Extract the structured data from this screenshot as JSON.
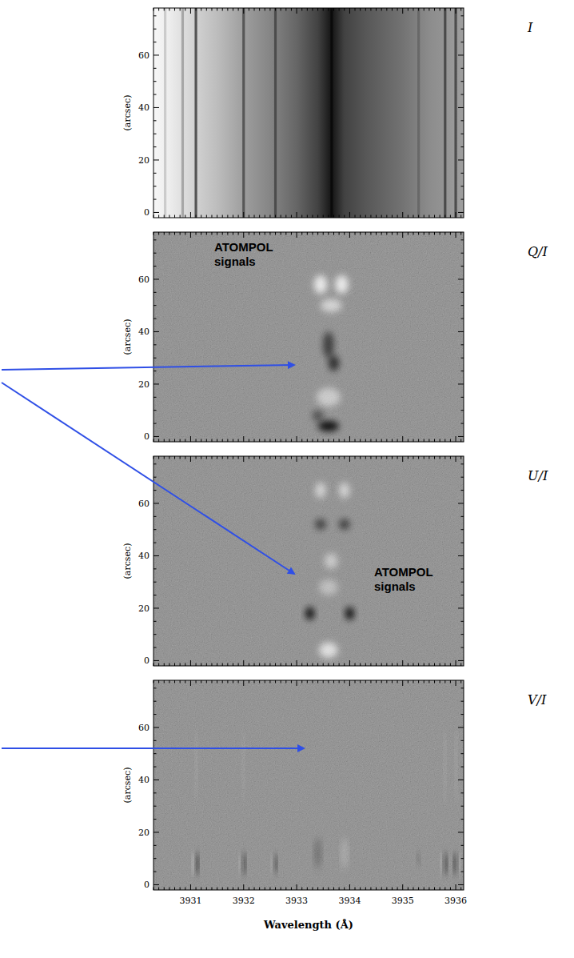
{
  "chart_data": [
    {
      "type": "image",
      "label": "I",
      "y_label": "(arcsec)",
      "xlim": [
        3930.3,
        3936.15
      ],
      "ylim": [
        -2,
        78
      ],
      "xticks": [
        3931,
        3932,
        3933,
        3934,
        3935,
        3936
      ],
      "yticks": [
        0,
        20,
        40,
        60
      ],
      "tick_labels": "y",
      "continuum": {
        "x": [
          3930.3,
          3930.6,
          3931.0,
          3931.5,
          3932.0,
          3932.5,
          3933.0,
          3933.4,
          3933.66,
          3933.9,
          3934.3,
          3935.0,
          3935.5,
          3936.15
        ],
        "values": [
          0.97,
          0.93,
          0.84,
          0.74,
          0.62,
          0.52,
          0.4,
          0.26,
          0.08,
          0.26,
          0.34,
          0.45,
          0.55,
          0.62
        ]
      },
      "absorption_lines": {
        "x": [
          3930.52,
          3930.85,
          3931.1,
          3932.0,
          3932.6,
          3933.66,
          3935.3,
          3935.8,
          3936.0
        ],
        "values": [
          0.15,
          0.25,
          0.6,
          0.45,
          0.4,
          0.5,
          0.2,
          0.5,
          0.5
        ]
      }
    },
    {
      "type": "image",
      "label": "Q/I",
      "y_label": "(arcsec)",
      "xlim": [
        3930.3,
        3936.15
      ],
      "ylim": [
        -2,
        78
      ],
      "xticks": [
        3931,
        3932,
        3933,
        3934,
        3935,
        3936
      ],
      "yticks": [
        0,
        20,
        40,
        60
      ],
      "tick_labels": "y",
      "annotation": "ATOMPOL signals",
      "blobs": {
        "x": [
          3933.45,
          3933.85,
          3933.65,
          3933.6,
          3933.7,
          3933.6,
          3933.6,
          3933.4
        ],
        "y": [
          58,
          58,
          50,
          35,
          28,
          15,
          4,
          8
        ],
        "dx": [
          0.25,
          0.25,
          0.4,
          0.2,
          0.2,
          0.45,
          0.4,
          0.2
        ],
        "dy": [
          7,
          7,
          5,
          10,
          6,
          7,
          4,
          4
        ],
        "values": [
          0.8,
          0.8,
          0.6,
          -0.6,
          -0.7,
          0.5,
          -0.9,
          -0.5
        ]
      }
    },
    {
      "type": "image",
      "label": "U/I",
      "y_label": "(arcsec)",
      "xlim": [
        3930.3,
        3936.15
      ],
      "ylim": [
        -2,
        78
      ],
      "xticks": [
        3931,
        3932,
        3933,
        3934,
        3935,
        3936
      ],
      "yticks": [
        0,
        20,
        40,
        60
      ],
      "tick_labels": "y",
      "annotation": "ATOMPOL signals",
      "blobs": {
        "x": [
          3933.45,
          3933.9,
          3933.45,
          3933.9,
          3933.65,
          3933.6,
          3933.25,
          3934.0,
          3933.6
        ],
        "y": [
          65,
          65,
          52,
          52,
          38,
          28,
          18,
          18,
          4
        ],
        "dx": [
          0.2,
          0.2,
          0.2,
          0.2,
          0.25,
          0.35,
          0.17,
          0.17,
          0.35
        ],
        "dy": [
          6,
          6,
          4,
          4,
          6,
          6,
          5,
          5,
          6
        ],
        "values": [
          0.6,
          0.6,
          -0.6,
          -0.6,
          0.5,
          0.4,
          -0.9,
          -0.9,
          0.7
        ]
      }
    },
    {
      "type": "image",
      "label": "V/I",
      "y_label": "(arcsec)",
      "x_label": "Wavelength (Å)",
      "xlim": [
        3930.3,
        3936.15
      ],
      "ylim": [
        -2,
        78
      ],
      "xticks": [
        3931,
        3932,
        3933,
        3934,
        3935,
        3936
      ],
      "yticks": [
        0,
        20,
        40,
        60
      ],
      "blobs": {
        "x": [
          3931.12,
          3931.05,
          3931.1,
          3932.0,
          3931.95,
          3932.0,
          3932.6,
          3932.55,
          3933.4,
          3933.9,
          3935.3,
          3935.8,
          3935.75,
          3935.8,
          3936.0,
          3936.05,
          3936.0
        ],
        "y": [
          8,
          8,
          45,
          8,
          8,
          45,
          8,
          8,
          12,
          12,
          10,
          8,
          8,
          45,
          8,
          8,
          45
        ],
        "dx": [
          0.05,
          0.04,
          0.03,
          0.05,
          0.04,
          0.03,
          0.05,
          0.04,
          0.1,
          0.1,
          0.05,
          0.05,
          0.04,
          0.03,
          0.05,
          0.04,
          0.03
        ],
        "dy": [
          9,
          9,
          28,
          9,
          8,
          28,
          8,
          8,
          12,
          12,
          6,
          9,
          9,
          28,
          9,
          9,
          28
        ],
        "values": [
          -0.95,
          0.6,
          0.3,
          -0.9,
          0.5,
          0.25,
          -0.8,
          0.4,
          -0.3,
          0.3,
          -0.3,
          -0.95,
          0.5,
          0.3,
          -0.95,
          0.5,
          0.3
        ]
      }
    }
  ]
}
